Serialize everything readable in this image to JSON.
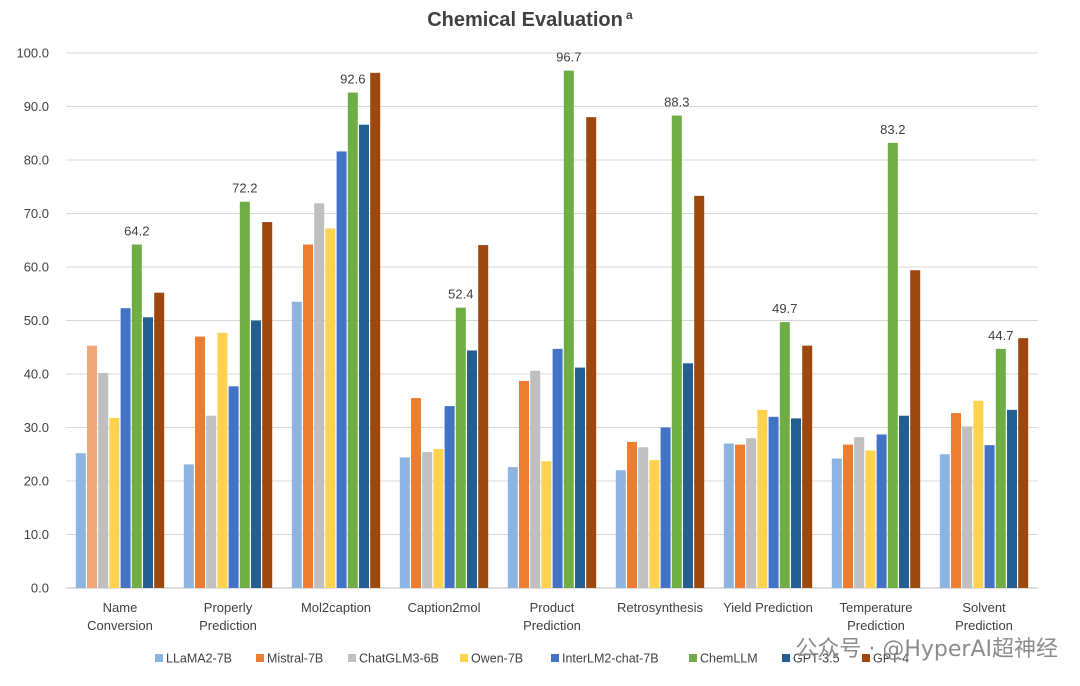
{
  "chart_data": {
    "type": "bar",
    "title": "Chemical Evaluation",
    "title_superscript": "a",
    "xlabel": "",
    "ylabel": "",
    "ylim": [
      0,
      100
    ],
    "yticks": [
      "0.0",
      "10.0",
      "20.0",
      "30.0",
      "40.0",
      "50.0",
      "60.0",
      "70.0",
      "80.0",
      "90.0",
      "100.0"
    ],
    "grid": true,
    "legend_position": "bottom",
    "categories": [
      [
        "Name",
        "Conversion"
      ],
      [
        "Properly",
        "Prediction"
      ],
      [
        "Mol2caption"
      ],
      [
        "Caption2mol"
      ],
      [
        "Product",
        "Prediction"
      ],
      [
        "Retrosynthesis"
      ],
      [
        "Yield Prediction"
      ],
      [
        "Temperature",
        "Prediction"
      ],
      [
        "Solvent",
        "Prediction"
      ]
    ],
    "series": [
      {
        "name": "LLaMA2-7B",
        "color": "#8cb4e0",
        "values": [
          25.2,
          23.1,
          53.5,
          24.4,
          22.6,
          22.0,
          27.0,
          24.2,
          25.0
        ]
      },
      {
        "name": "Mistral-7B",
        "color": "#ed7d31",
        "values": [
          45.3,
          47.0,
          64.2,
          35.5,
          38.7,
          27.3,
          26.8,
          26.8,
          32.7
        ]
      },
      {
        "name": "ChatGLM3-6B",
        "color": "#bfbfbf",
        "values": [
          40.2,
          32.2,
          71.9,
          25.4,
          40.6,
          26.3,
          28.0,
          28.2,
          30.2
        ]
      },
      {
        "name": "Owen-7B",
        "color": "#ffd24d",
        "values": [
          31.8,
          47.7,
          67.2,
          26.0,
          23.7,
          23.9,
          33.3,
          25.7,
          35.0
        ]
      },
      {
        "name": "InterLM2-chat-7B",
        "color": "#4472c4",
        "values": [
          52.3,
          37.7,
          81.6,
          34.0,
          44.7,
          30.0,
          32.0,
          28.7,
          26.7
        ]
      },
      {
        "name": "ChemLLM",
        "color": "#70ad47",
        "values": [
          64.2,
          72.2,
          92.6,
          52.4,
          96.7,
          88.3,
          49.7,
          83.2,
          44.7
        ]
      },
      {
        "name": "GPT-3.5",
        "color": "#255e91",
        "values": [
          50.6,
          50.0,
          86.6,
          44.4,
          41.2,
          42.0,
          31.7,
          32.2,
          33.3
        ]
      },
      {
        "name": "GPT-4",
        "color": "#9e480e",
        "values": [
          55.2,
          68.4,
          96.3,
          64.1,
          88.0,
          73.3,
          45.3,
          59.4,
          46.7
        ]
      }
    ],
    "data_labels": {
      "series": "ChemLLM",
      "values": [
        "64.2",
        "72.2",
        "92.6",
        "52.4",
        "96.7",
        "88.3",
        "49.7",
        "83.2",
        "44.7"
      ]
    }
  },
  "watermark": "公众号 · @HyperAI超神经"
}
